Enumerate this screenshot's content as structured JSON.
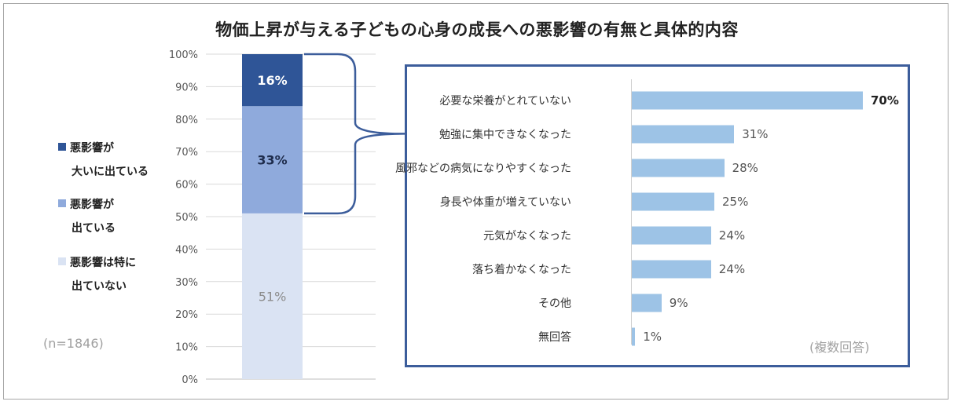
{
  "title": "物価上昇が与える子どもの心身の成長への悪影響の有無と具体的内容",
  "note_left": "(n=1846)",
  "note_right": "(複数回答)",
  "legend": [
    {
      "line1": "悪影響が",
      "line2": "大いに出ている",
      "color": "#2f5597"
    },
    {
      "line1": "悪影響が",
      "line2": "出ている",
      "color": "#8faadc"
    },
    {
      "line1": "悪影響は特に",
      "line2": "出ていない",
      "color": "#dae3f3"
    }
  ],
  "chart_data": [
    {
      "type": "bar",
      "stacked": true,
      "categories": [
        ""
      ],
      "series": [
        {
          "name": "悪影響は特に出ていない",
          "values": [
            51
          ],
          "label": "51%",
          "color": "#dae3f3",
          "label_color": "#8c8c8c"
        },
        {
          "name": "悪影響が出ている",
          "values": [
            33
          ],
          "label": "33%",
          "color": "#8faadc",
          "label_color": "#1f2d4d"
        },
        {
          "name": "悪影響が大いに出ている",
          "values": [
            16
          ],
          "label": "16%",
          "color": "#2f5597",
          "label_color": "#ffffff"
        }
      ],
      "ylim": [
        0,
        100
      ],
      "yticks": [
        "0%",
        "10%",
        "20%",
        "30%",
        "40%",
        "50%",
        "60%",
        "70%",
        "80%",
        "90%",
        "100%"
      ],
      "grid": true
    },
    {
      "type": "bar",
      "orientation": "horizontal",
      "categories": [
        "必要な栄養がとれていない",
        "勉強に集中できなくなった",
        "風邪などの病気になりやすくなった",
        "身長や体重が増えていない",
        "元気がなくなった",
        "落ち着かなくなった",
        "その他",
        "無回答"
      ],
      "values": [
        70,
        31,
        28,
        25,
        24,
        24,
        9,
        1
      ],
      "labels": [
        "70%",
        "31%",
        "28%",
        "25%",
        "24%",
        "24%",
        "9%",
        "1%"
      ],
      "color": "#9dc3e6",
      "xlim": [
        0,
        70
      ]
    }
  ]
}
